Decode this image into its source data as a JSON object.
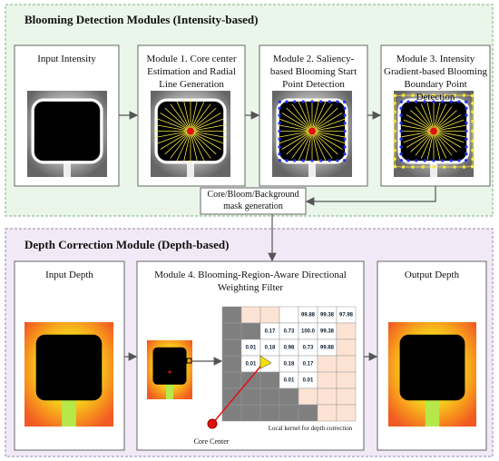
{
  "top_panel": {
    "title": "Blooming Detection Modules (Intensity-based)",
    "modules": [
      "Input Intensity",
      "Module 1. Core center Estimation and Radial Line Generation",
      "Module 2. Saliency-based Blooming Start Point Detection",
      "Module 3. Intensity Gradient-based Blooming Boundary Point Detection"
    ]
  },
  "mask_step": "Core/Bloom/Background mask generation",
  "bottom_panel": {
    "title": "Depth Correction Module (Depth-based)",
    "modules": [
      "Input Depth",
      "Module 4. Blooming-Region-Aware Directional Weighting Filter",
      "Output Depth"
    ]
  },
  "kernel": {
    "rows": [
      [
        null,
        null,
        null,
        null,
        "99.88",
        "99.38",
        "97.98"
      ],
      [
        null,
        null,
        "0.17",
        "0.73",
        "100.0",
        "99.38",
        null
      ],
      [
        null,
        "0.01",
        "0.18",
        "0.98",
        "0.73",
        "99.88",
        null
      ],
      [
        null,
        "0.01",
        null,
        "0.18",
        "0.17",
        null,
        null
      ],
      [
        null,
        null,
        null,
        "0.01",
        "0.01",
        null,
        null
      ],
      [
        null,
        null,
        null,
        null,
        null,
        null,
        null
      ],
      [
        null,
        null,
        null,
        null,
        null,
        null,
        null
      ]
    ],
    "caption": "Local kernel for depth correction"
  },
  "core_center": "Core Center"
}
